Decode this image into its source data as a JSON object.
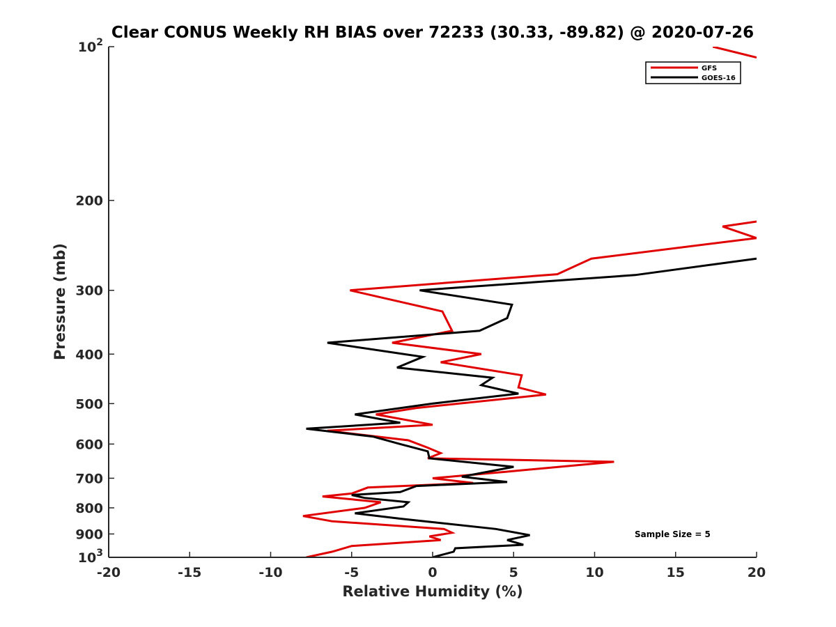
{
  "chart_data": {
    "type": "line",
    "title": "Clear CONUS Weekly RH BIAS over 72233 (30.33, -89.82) @ 2020-07-26",
    "xlabel": "Relative Humidity (%)",
    "ylabel": "Pressure (mb)",
    "xlim": [
      -20,
      20
    ],
    "ylim": [
      1000,
      100
    ],
    "yscale": "log",
    "y_reversed": true,
    "grid": false,
    "legend_position": "top-right",
    "x_ticks": [
      "-20",
      "-15",
      "-10",
      "-5",
      "0",
      "5",
      "10",
      "15",
      "20"
    ],
    "y_ticks": [
      {
        "value": 100,
        "base": "10",
        "exp": "2"
      },
      {
        "value": 200,
        "label": "200"
      },
      {
        "value": 300,
        "label": "300"
      },
      {
        "value": 400,
        "label": "400"
      },
      {
        "value": 500,
        "label": "500"
      },
      {
        "value": 600,
        "label": "600"
      },
      {
        "value": 700,
        "label": "700"
      },
      {
        "value": 800,
        "label": "800"
      },
      {
        "value": 900,
        "label": "900"
      },
      {
        "value": 1000,
        "base": "10",
        "exp": "3"
      }
    ],
    "annotation": "Sample Size = 5",
    "series": [
      {
        "name": "GFS",
        "color": "#e00000",
        "points": [
          [
            -7.8,
            1000
          ],
          [
            -6.2,
            975
          ],
          [
            -5.0,
            950
          ],
          [
            0.5,
            925
          ],
          [
            -0.2,
            910
          ],
          [
            1.2,
            895
          ],
          [
            0.7,
            880
          ],
          [
            -6.2,
            850
          ],
          [
            -8.0,
            830
          ],
          [
            -4.2,
            800
          ],
          [
            -3.2,
            780
          ],
          [
            -6.8,
            760
          ],
          [
            -5.0,
            750
          ],
          [
            -4.0,
            730
          ],
          [
            2.5,
            715
          ],
          [
            0.0,
            700
          ],
          [
            4.5,
            680
          ],
          [
            11.2,
            650
          ],
          [
            -0.3,
            640
          ],
          [
            0.5,
            625
          ],
          [
            -0.3,
            610
          ],
          [
            -1.5,
            590
          ],
          [
            -6.5,
            565
          ],
          [
            0.0,
            550
          ],
          [
            -3.5,
            525
          ],
          [
            -1.0,
            510
          ],
          [
            7.0,
            480
          ],
          [
            5.3,
            465
          ],
          [
            5.5,
            440
          ],
          [
            0.5,
            415
          ],
          [
            3.0,
            400
          ],
          [
            -2.5,
            380
          ],
          [
            1.2,
            360
          ],
          [
            0.6,
            330
          ],
          [
            -5.1,
            300
          ],
          [
            7.7,
            279
          ],
          [
            9.8,
            260
          ],
          [
            20.0,
            237
          ],
          [
            17.9,
            225
          ],
          [
            20.0,
            220
          ]
        ]
      },
      {
        "name": "GOES-16",
        "color": "#000000",
        "points": [
          [
            0.0,
            1000
          ],
          [
            1.3,
            975
          ],
          [
            1.4,
            960
          ],
          [
            5.6,
            945
          ],
          [
            4.6,
            925
          ],
          [
            6.0,
            905
          ],
          [
            3.9,
            880
          ],
          [
            -2.0,
            840
          ],
          [
            -4.8,
            820
          ],
          [
            -1.8,
            795
          ],
          [
            -1.5,
            780
          ],
          [
            -4.2,
            765
          ],
          [
            -5.0,
            755
          ],
          [
            -2.0,
            745
          ],
          [
            -1.0,
            725
          ],
          [
            4.6,
            712
          ],
          [
            1.8,
            695
          ],
          [
            5.0,
            665
          ],
          [
            -0.2,
            640
          ],
          [
            -0.3,
            620
          ],
          [
            -2.0,
            600
          ],
          [
            -3.7,
            580
          ],
          [
            -7.8,
            560
          ],
          [
            -2.0,
            545
          ],
          [
            -4.8,
            525
          ],
          [
            0.0,
            500
          ],
          [
            5.3,
            478
          ],
          [
            3.0,
            460
          ],
          [
            3.7,
            445
          ],
          [
            -2.2,
            425
          ],
          [
            -0.6,
            405
          ],
          [
            -6.5,
            380
          ],
          [
            2.9,
            360
          ],
          [
            4.6,
            340
          ],
          [
            4.9,
            320
          ],
          [
            -0.8,
            300
          ],
          [
            12.5,
            280
          ],
          [
            20.0,
            260
          ]
        ]
      },
      {
        "name": "",
        "color": "#e00000",
        "points": [
          [
            17.3,
            100
          ],
          [
            20.0,
            105
          ]
        ]
      }
    ]
  }
}
